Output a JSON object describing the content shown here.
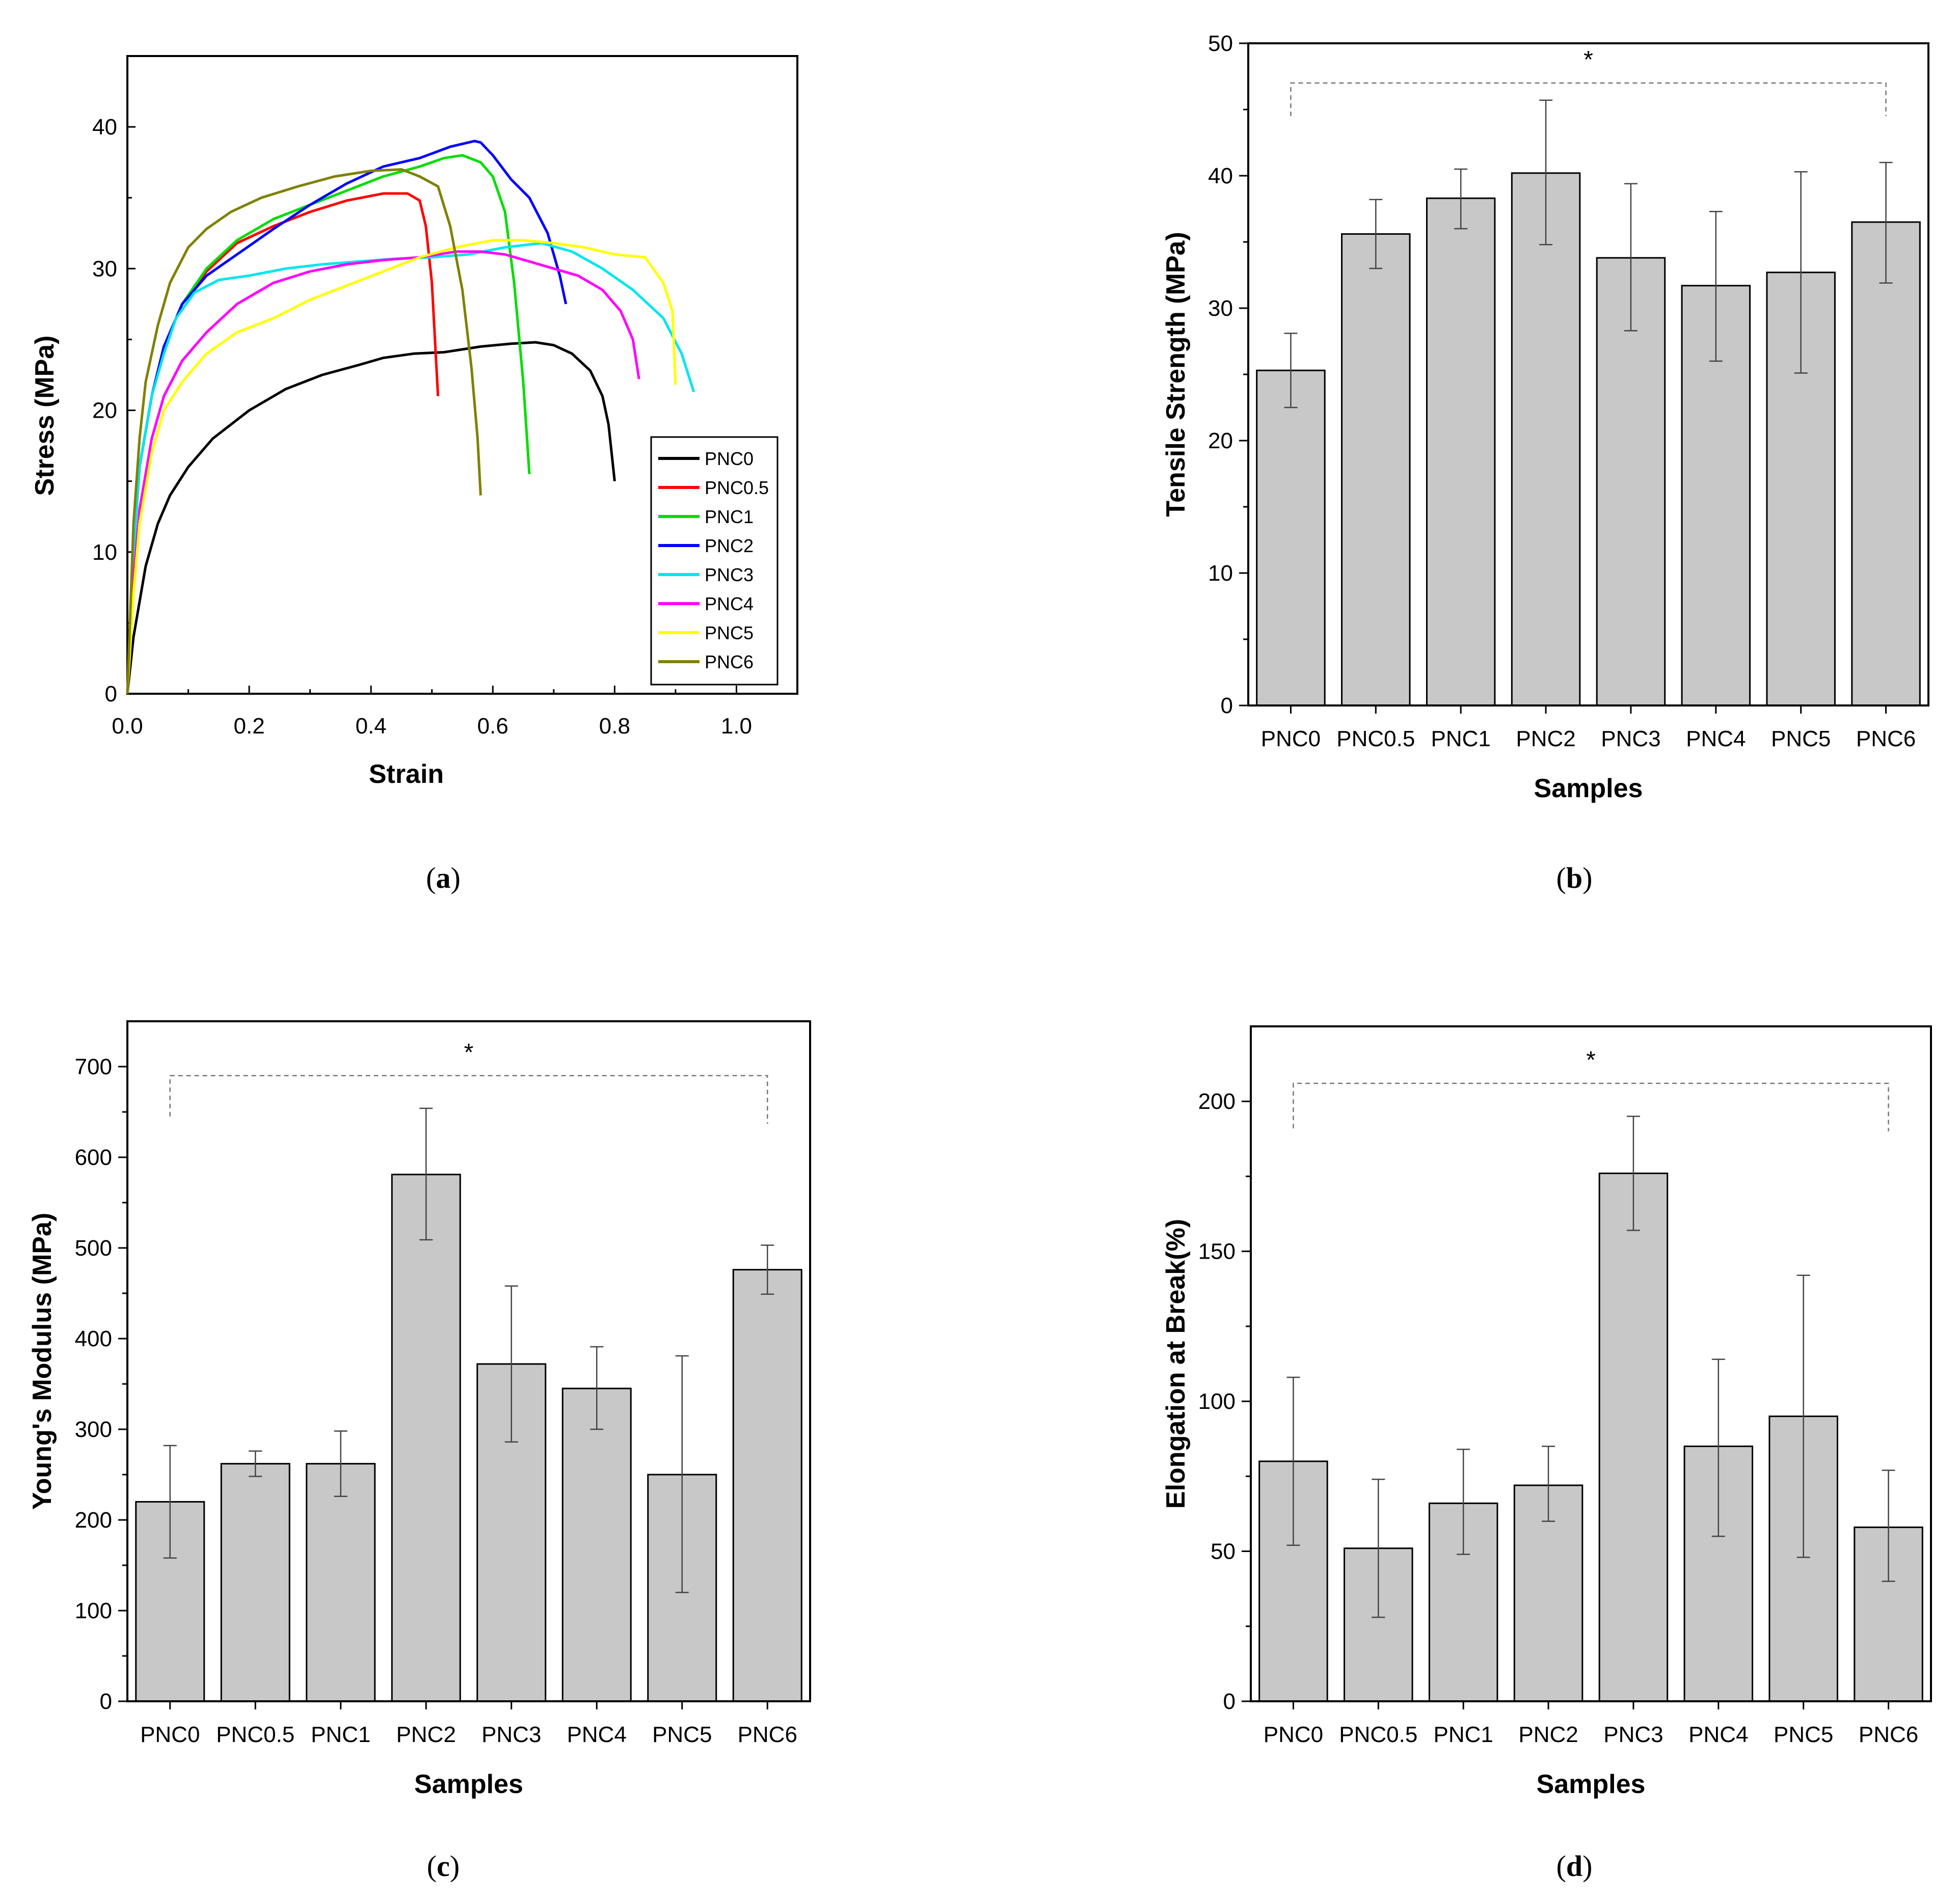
{
  "captions": {
    "a": "a",
    "b": "b",
    "c": "c",
    "d": "d"
  },
  "chart_data": [
    {
      "id": "a",
      "type": "line",
      "title": "",
      "xlabel": "Strain",
      "ylabel": "Stress (MPa)",
      "xlim": [
        0,
        1.1
      ],
      "ylim": [
        0,
        45
      ],
      "xticks": [
        0.0,
        0.2,
        0.4,
        0.6,
        0.8,
        1.0
      ],
      "xtick_labels": [
        "0.0",
        "0.2",
        "0.4",
        "0.6",
        "0.8",
        "1.0"
      ],
      "yticks": [
        0,
        10,
        20,
        30,
        40
      ],
      "ytick_labels": [
        "0",
        "10",
        "20",
        "30",
        "40"
      ],
      "legend_position": "bottom-right",
      "series": [
        {
          "name": "PNC0",
          "color": "#000000",
          "x": [
            0,
            0.01,
            0.03,
            0.05,
            0.07,
            0.1,
            0.14,
            0.2,
            0.26,
            0.32,
            0.38,
            0.42,
            0.47,
            0.52,
            0.58,
            0.63,
            0.67,
            0.7,
            0.73,
            0.76,
            0.78,
            0.79,
            0.8
          ],
          "y": [
            0,
            4,
            9,
            12,
            14,
            16,
            18,
            20,
            21.5,
            22.5,
            23.2,
            23.7,
            24,
            24.1,
            24.5,
            24.7,
            24.8,
            24.6,
            24,
            22.8,
            21,
            19,
            15
          ]
        },
        {
          "name": "PNC0.5",
          "color": "#ff0000",
          "x": [
            0,
            0.01,
            0.02,
            0.04,
            0.06,
            0.09,
            0.13,
            0.18,
            0.24,
            0.3,
            0.36,
            0.42,
            0.46,
            0.48,
            0.49,
            0.5,
            0.505,
            0.51
          ],
          "y": [
            0,
            10,
            16,
            21,
            24.5,
            27.5,
            29.8,
            31.8,
            33,
            34,
            34.8,
            35.3,
            35.3,
            34.8,
            33,
            29,
            25,
            21
          ]
        },
        {
          "name": "PNC1",
          "color": "#00dd00",
          "x": [
            0,
            0.01,
            0.02,
            0.04,
            0.06,
            0.09,
            0.13,
            0.18,
            0.24,
            0.3,
            0.36,
            0.42,
            0.48,
            0.52,
            0.55,
            0.58,
            0.6,
            0.62,
            0.635,
            0.65,
            0.66
          ],
          "y": [
            0,
            10,
            16,
            21,
            24.5,
            27.5,
            30,
            32,
            33.5,
            34.5,
            35.5,
            36.5,
            37.2,
            37.8,
            38,
            37.5,
            36.5,
            34,
            29,
            22,
            15.5
          ]
        },
        {
          "name": "PNC2",
          "color": "#0000ff",
          "x": [
            0,
            0.01,
            0.02,
            0.04,
            0.06,
            0.09,
            0.13,
            0.18,
            0.24,
            0.3,
            0.36,
            0.42,
            0.48,
            0.53,
            0.57,
            0.58,
            0.6,
            0.63,
            0.66,
            0.69,
            0.71,
            0.72
          ],
          "y": [
            0,
            10,
            16,
            21,
            24.5,
            27.5,
            29.5,
            31,
            32.8,
            34.5,
            36,
            37.2,
            37.8,
            38.6,
            39,
            38.9,
            38,
            36.3,
            35,
            32.5,
            29.5,
            27.5
          ]
        },
        {
          "name": "PNC3",
          "color": "#00e5ee",
          "x": [
            0,
            0.01,
            0.02,
            0.04,
            0.06,
            0.08,
            0.11,
            0.15,
            0.2,
            0.26,
            0.32,
            0.38,
            0.44,
            0.5,
            0.56,
            0.62,
            0.68,
            0.73,
            0.78,
            0.83,
            0.88,
            0.91,
            0.93
          ],
          "y": [
            0,
            10,
            16,
            21,
            24,
            26.5,
            28.3,
            29.2,
            29.5,
            30,
            30.3,
            30.5,
            30.7,
            30.8,
            31,
            31.5,
            31.8,
            31.2,
            30,
            28.5,
            26.5,
            24,
            21.3
          ]
        },
        {
          "name": "PNC4",
          "color": "#ff00ff",
          "x": [
            0,
            0.01,
            0.02,
            0.04,
            0.06,
            0.09,
            0.13,
            0.18,
            0.24,
            0.3,
            0.36,
            0.42,
            0.48,
            0.54,
            0.58,
            0.62,
            0.66,
            0.7,
            0.74,
            0.78,
            0.81,
            0.83,
            0.84
          ],
          "y": [
            0,
            8,
            13,
            18,
            21,
            23.5,
            25.5,
            27.5,
            29,
            29.8,
            30.3,
            30.6,
            30.8,
            31.2,
            31.2,
            31,
            30.5,
            30,
            29.5,
            28.5,
            27,
            25,
            22.2
          ]
        },
        {
          "name": "PNC5",
          "color": "#ffff00",
          "x": [
            0,
            0.01,
            0.02,
            0.04,
            0.06,
            0.09,
            0.13,
            0.18,
            0.24,
            0.3,
            0.36,
            0.42,
            0.48,
            0.54,
            0.6,
            0.65,
            0.7,
            0.75,
            0.8,
            0.85,
            0.88,
            0.895,
            0.9
          ],
          "y": [
            0,
            7,
            12,
            17,
            20,
            22,
            24,
            25.5,
            26.5,
            27.8,
            28.8,
            29.8,
            30.8,
            31.5,
            32,
            32,
            31.8,
            31.5,
            31,
            30.8,
            29,
            27,
            21.8
          ]
        },
        {
          "name": "PNC6",
          "color": "#808000",
          "x": [
            0,
            0.01,
            0.02,
            0.03,
            0.05,
            0.07,
            0.1,
            0.13,
            0.17,
            0.22,
            0.28,
            0.34,
            0.4,
            0.45,
            0.48,
            0.51,
            0.53,
            0.55,
            0.565,
            0.575,
            0.58
          ],
          "y": [
            0,
            12,
            18,
            22,
            26,
            29,
            31.5,
            32.8,
            34,
            35,
            35.8,
            36.5,
            36.9,
            37,
            36.5,
            35.8,
            33,
            28.5,
            23,
            18,
            14
          ]
        }
      ]
    },
    {
      "id": "b",
      "type": "bar",
      "title": "",
      "xlabel": "Samples",
      "ylabel": "Tensile Strength (MPa)",
      "ylim": [
        0,
        50
      ],
      "yticks": [
        0,
        10,
        20,
        30,
        40,
        50
      ],
      "ytick_labels": [
        "0",
        "10",
        "20",
        "30",
        "40",
        "50"
      ],
      "categories": [
        "PNC0",
        "PNC0.5",
        "PNC1",
        "PNC2",
        "PNC3",
        "PNC4",
        "PNC5",
        "PNC6"
      ],
      "values": [
        25.3,
        35.6,
        38.3,
        40.2,
        33.8,
        31.7,
        32.7,
        36.5
      ],
      "err_low": [
        22.5,
        33.0,
        36.0,
        34.8,
        28.3,
        26.0,
        25.1,
        31.9
      ],
      "err_high": [
        28.1,
        38.2,
        40.5,
        45.7,
        39.4,
        37.3,
        40.3,
        41.0
      ],
      "bar_color": "#c8c8c8",
      "significance": {
        "label": "*",
        "level": 47,
        "left_end": 44.5,
        "right_end": 44.5
      }
    },
    {
      "id": "c",
      "type": "bar",
      "title": "",
      "xlabel": "Samples",
      "ylabel": "Young's Modulus (MPa)",
      "ylim": [
        0,
        750
      ],
      "yticks": [
        0,
        100,
        200,
        300,
        400,
        500,
        600,
        700
      ],
      "ytick_labels": [
        "0",
        "100",
        "200",
        "300",
        "400",
        "500",
        "600",
        "700"
      ],
      "categories": [
        "PNC0",
        "PNC0.5",
        "PNC1",
        "PNC2",
        "PNC3",
        "PNC4",
        "PNC5",
        "PNC6"
      ],
      "values": [
        220,
        262,
        262,
        581,
        372,
        345,
        250,
        476
      ],
      "err_low": [
        158,
        248,
        226,
        509,
        286,
        300,
        120,
        449
      ],
      "err_high": [
        282,
        276,
        298,
        654,
        458,
        391,
        381,
        503
      ],
      "bar_color": "#c8c8c8",
      "significance": {
        "label": "*",
        "level": 690,
        "left_end": 645,
        "right_end": 637
      }
    },
    {
      "id": "d",
      "type": "bar",
      "title": "",
      "xlabel": "Samples",
      "ylabel": "Elongation at Break(%)",
      "ylim": [
        0,
        225
      ],
      "yticks": [
        0,
        50,
        100,
        150,
        200
      ],
      "ytick_labels": [
        "0",
        "50",
        "100",
        "150",
        "200"
      ],
      "categories": [
        "PNC0",
        "PNC0.5",
        "PNC1",
        "PNC2",
        "PNC3",
        "PNC4",
        "PNC5",
        "PNC6"
      ],
      "values": [
        80,
        51,
        66,
        72,
        176,
        85,
        95,
        58
      ],
      "err_low": [
        52,
        28,
        49,
        60,
        157,
        55,
        48,
        40
      ],
      "err_high": [
        108,
        74,
        84,
        85,
        195,
        114,
        142,
        77
      ],
      "bar_color": "#c8c8c8",
      "significance": {
        "label": "*",
        "level": 206,
        "left_end": 191,
        "right_end": 190
      }
    }
  ]
}
